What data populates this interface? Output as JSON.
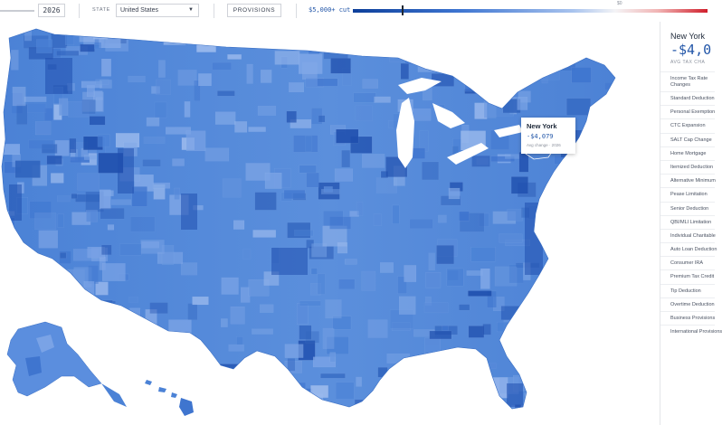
{
  "toolbar": {
    "year": "2026",
    "state_label": "STATE",
    "state_value": "United States",
    "provisions_label": "PROVISIONS",
    "legend_cut_label": "$5,000+ cut",
    "legend_zero_label": "$0"
  },
  "tooltip": {
    "name": "New York",
    "value": "-$4,079",
    "subtitle": "Avg change · 2026"
  },
  "panel": {
    "title": "New York",
    "value": "-$4,0",
    "subtitle": "AVG TAX CHA",
    "provisions": [
      "Income Tax Rate Changes",
      "Standard Deduction",
      "Personal Exemption",
      "CTC Expansion",
      "SALT Cap Change",
      "Home Mortgage",
      "Itemized Deduction",
      "Alternative Minimum",
      "Pease Limitation",
      "Senior Deduction",
      "QBI/MLI Limitation",
      "Individual Charitable",
      "Auto Loan Deduction",
      "Consumer IRA",
      "Premium Tax Credit",
      "Tip Deduction",
      "Overtime Deduction",
      "Business Provisions",
      "International Provisions"
    ]
  },
  "colors": {
    "accent": "#2256a8",
    "map_base": "#4d84d8",
    "map_dark": "#1f4fae",
    "map_light": "#8fb1ea"
  }
}
